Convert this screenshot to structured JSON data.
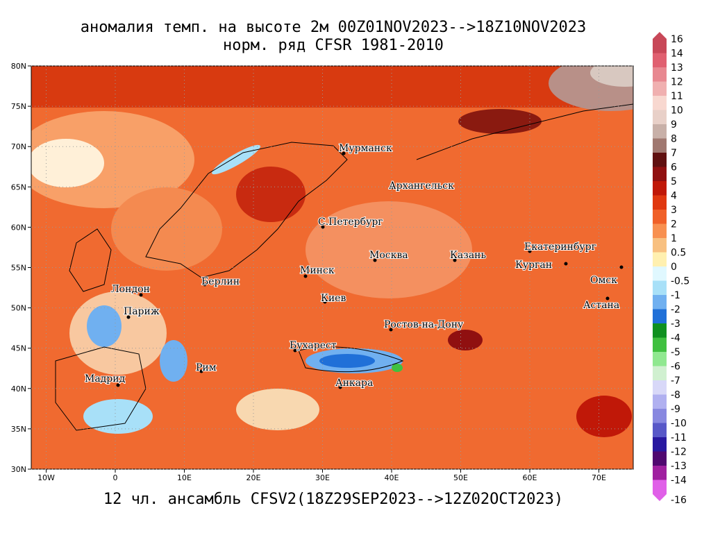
{
  "title": [
    "аномалия темп. на высоте 2м 00Z01NOV2023-->18Z10NOV2023",
    "норм. ряд CFSR 1981-2010"
  ],
  "footer": "12 чл. ансамбль CFSV2(18Z29SEP2023-->12Z02OCT2023)",
  "map": {
    "lat_ticks": [
      {
        "value": 80,
        "label": "80N"
      },
      {
        "value": 75,
        "label": "75N"
      },
      {
        "value": 70,
        "label": "70N"
      },
      {
        "value": 65,
        "label": "65N"
      },
      {
        "value": 60,
        "label": "60N"
      },
      {
        "value": 55,
        "label": "55N"
      },
      {
        "value": 50,
        "label": "50N"
      },
      {
        "value": 45,
        "label": "45N"
      },
      {
        "value": 40,
        "label": "40N"
      },
      {
        "value": 35,
        "label": "35N"
      },
      {
        "value": 30,
        "label": "30N"
      }
    ],
    "lon_ticks": [
      {
        "value": -10,
        "label": "10W"
      },
      0,
      {
        "value": 10,
        "label": "10E"
      },
      {
        "value": 20,
        "label": "20E"
      },
      {
        "value": 30,
        "label": "30E"
      },
      {
        "value": 40,
        "label": "40E"
      },
      {
        "value": 50,
        "label": "50E"
      },
      {
        "value": 60,
        "label": "60E"
      },
      {
        "value": 70,
        "label": "70E"
      }
    ],
    "cities": [
      "Мурманск",
      "Архангельск",
      "С.Петербург",
      "Москва",
      "Казань",
      "Екатеринбург",
      "Курган",
      "Омск",
      "Астана",
      "Минск",
      "Берлин",
      "Лондон",
      "Париж",
      "Киев",
      "Ростов-на-Дону",
      "Бухарест",
      "Рим",
      "Мадрид",
      "Анкара"
    ]
  },
  "colorbar": {
    "labels": [
      16,
      14,
      13,
      12,
      11,
      10,
      9,
      8,
      7,
      6,
      5,
      4,
      3,
      2,
      1,
      0.5,
      0,
      -0.5,
      -1,
      -2,
      -3,
      -4,
      -5,
      -6,
      -7,
      -8,
      -9,
      -10,
      -11,
      -12,
      -13,
      -14,
      -16
    ],
    "colors": [
      "#c84858",
      "#e06070",
      "#e88890",
      "#f0b0b0",
      "#f8d8d0",
      "#e8d0c8",
      "#c8b0a8",
      "#a07870",
      "#601010",
      "#901010",
      "#c01808",
      "#e03810",
      "#f06028",
      "#f89050",
      "#f8c080",
      "#fff0b0",
      "#e0f8ff",
      "#a8e0f8",
      "#70b0f0",
      "#2070d8",
      "#109020",
      "#40c040",
      "#90e890",
      "#d0f0d0",
      "#d8d8f8",
      "#b0b0f0",
      "#8888e0",
      "#5858c8",
      "#2818a0",
      "#500870",
      "#a020a0",
      "#e060e8"
    ]
  }
}
